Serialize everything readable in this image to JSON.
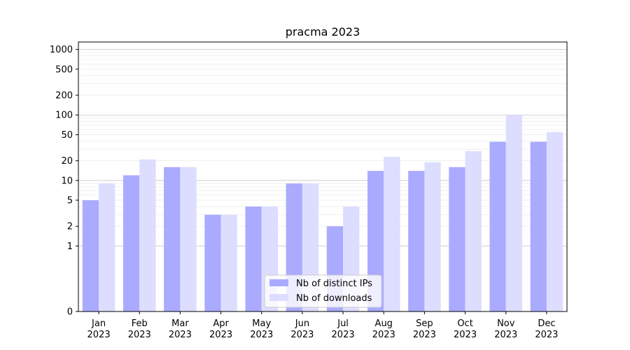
{
  "chart_data": {
    "type": "bar",
    "title": "pracma 2023",
    "xlabel": "",
    "ylabel": "",
    "y_scale": "symlog",
    "categories": [
      [
        "Jan",
        "2023"
      ],
      [
        "Feb",
        "2023"
      ],
      [
        "Mar",
        "2023"
      ],
      [
        "Apr",
        "2023"
      ],
      [
        "May",
        "2023"
      ],
      [
        "Jun",
        "2023"
      ],
      [
        "Jul",
        "2023"
      ],
      [
        "Aug",
        "2023"
      ],
      [
        "Sep",
        "2023"
      ],
      [
        "Oct",
        "2023"
      ],
      [
        "Nov",
        "2023"
      ],
      [
        "Dec",
        "2023"
      ]
    ],
    "series": [
      {
        "name": "Nb of distinct IPs",
        "color": "#aaaaff",
        "values": [
          5,
          12,
          16,
          3,
          4,
          9,
          2,
          14,
          14,
          16,
          39,
          39
        ]
      },
      {
        "name": "Nb of downloads",
        "color": "#ddddff",
        "values": [
          9,
          21,
          16,
          3,
          4,
          9,
          4,
          23,
          19,
          28,
          100,
          55
        ]
      }
    ],
    "y_ticks": [
      0,
      1,
      2,
      5,
      10,
      20,
      50,
      100,
      200,
      500,
      1000
    ],
    "ylim": [
      0,
      1300
    ],
    "grid": true,
    "legend_position": "lower center"
  }
}
